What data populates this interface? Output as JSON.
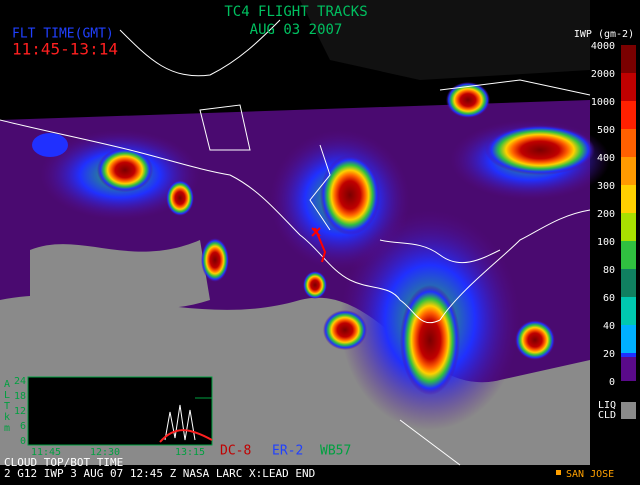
{
  "header": {
    "title": "TC4 FLIGHT TRACKS",
    "date": "AUG 03 2007",
    "flight_time_label": "FLT TIME(GMT)",
    "flight_time": "11:45-13:14"
  },
  "legend": {
    "title": "IWP (gm-2)",
    "entries": [
      {
        "label": "4000",
        "color": "#7a0000"
      },
      {
        "label": "2000",
        "color": "#c00000"
      },
      {
        "label": "1000",
        "color": "#ff2000"
      },
      {
        "label": "500",
        "color": "#ff6000"
      },
      {
        "label": "400",
        "color": "#ff9a00"
      },
      {
        "label": "300",
        "color": "#ffd000"
      },
      {
        "label": "200",
        "color": "#a8e000"
      },
      {
        "label": "100",
        "color": "#30c040"
      },
      {
        "label": "80",
        "color": "#108060"
      },
      {
        "label": "60",
        "color": "#00c8b0"
      },
      {
        "label": "40",
        "color": "#00b0ff"
      },
      {
        "label": "20",
        "color": "#2030ff"
      },
      {
        "label": "0",
        "color": "#5a0a8a"
      }
    ],
    "liquid_cloud": [
      "LIQ",
      "CLD"
    ]
  },
  "inset": {
    "axis_label": [
      "A",
      "L",
      "T",
      "k",
      "m"
    ],
    "yticks": [
      "24",
      "18",
      "12",
      "6",
      "0"
    ],
    "xticks": [
      "11:45",
      "12:30",
      "13:15"
    ],
    "caption": "CLOUD TOP/BOT TIME"
  },
  "aircraft": [
    "DC-8",
    "ER-2",
    "WB57"
  ],
  "footer": {
    "info": "2   G12 IWP   3 AUG 07 12:45 Z   NASA LARC   X:LEAD END",
    "site": "SAN JOSE"
  }
}
